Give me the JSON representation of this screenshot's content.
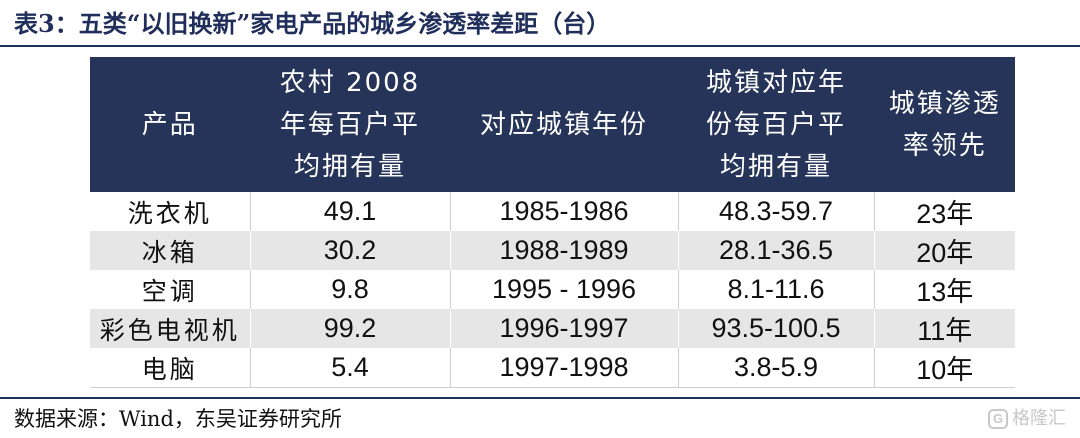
{
  "title": "表3：五类“以旧换新”家电产品的城乡渗透率差距（台）",
  "table": {
    "headers": [
      "产品",
      "农村 2008\n年每百户平\n均拥有量",
      "对应城镇年份",
      "城镇对应年\n份每百户平\n均拥有量",
      "城镇渗透\n率领先"
    ],
    "rows": [
      [
        "洗衣机",
        "49.1",
        "1985-1986",
        "48.3-59.7",
        "23年"
      ],
      [
        "冰箱",
        "30.2",
        "1988-1989",
        "28.1-36.5",
        "20年"
      ],
      [
        "空调",
        "9.8",
        "1995 - 1996",
        "8.1-11.6",
        "13年"
      ],
      [
        "彩色电视机",
        "99.2",
        "1996-1997",
        "93.5-100.5",
        "11年"
      ],
      [
        "电脑",
        "5.4",
        "1997-1998",
        "3.8-5.9",
        "10年"
      ]
    ]
  },
  "source": "数据来源：Wind，东吴证券研究所",
  "watermark": {
    "logo": "G",
    "text": "格隆汇"
  },
  "colors": {
    "header_bg": "#253458",
    "title": "#1f2e5a",
    "row_alt": "#e6e6e6"
  }
}
